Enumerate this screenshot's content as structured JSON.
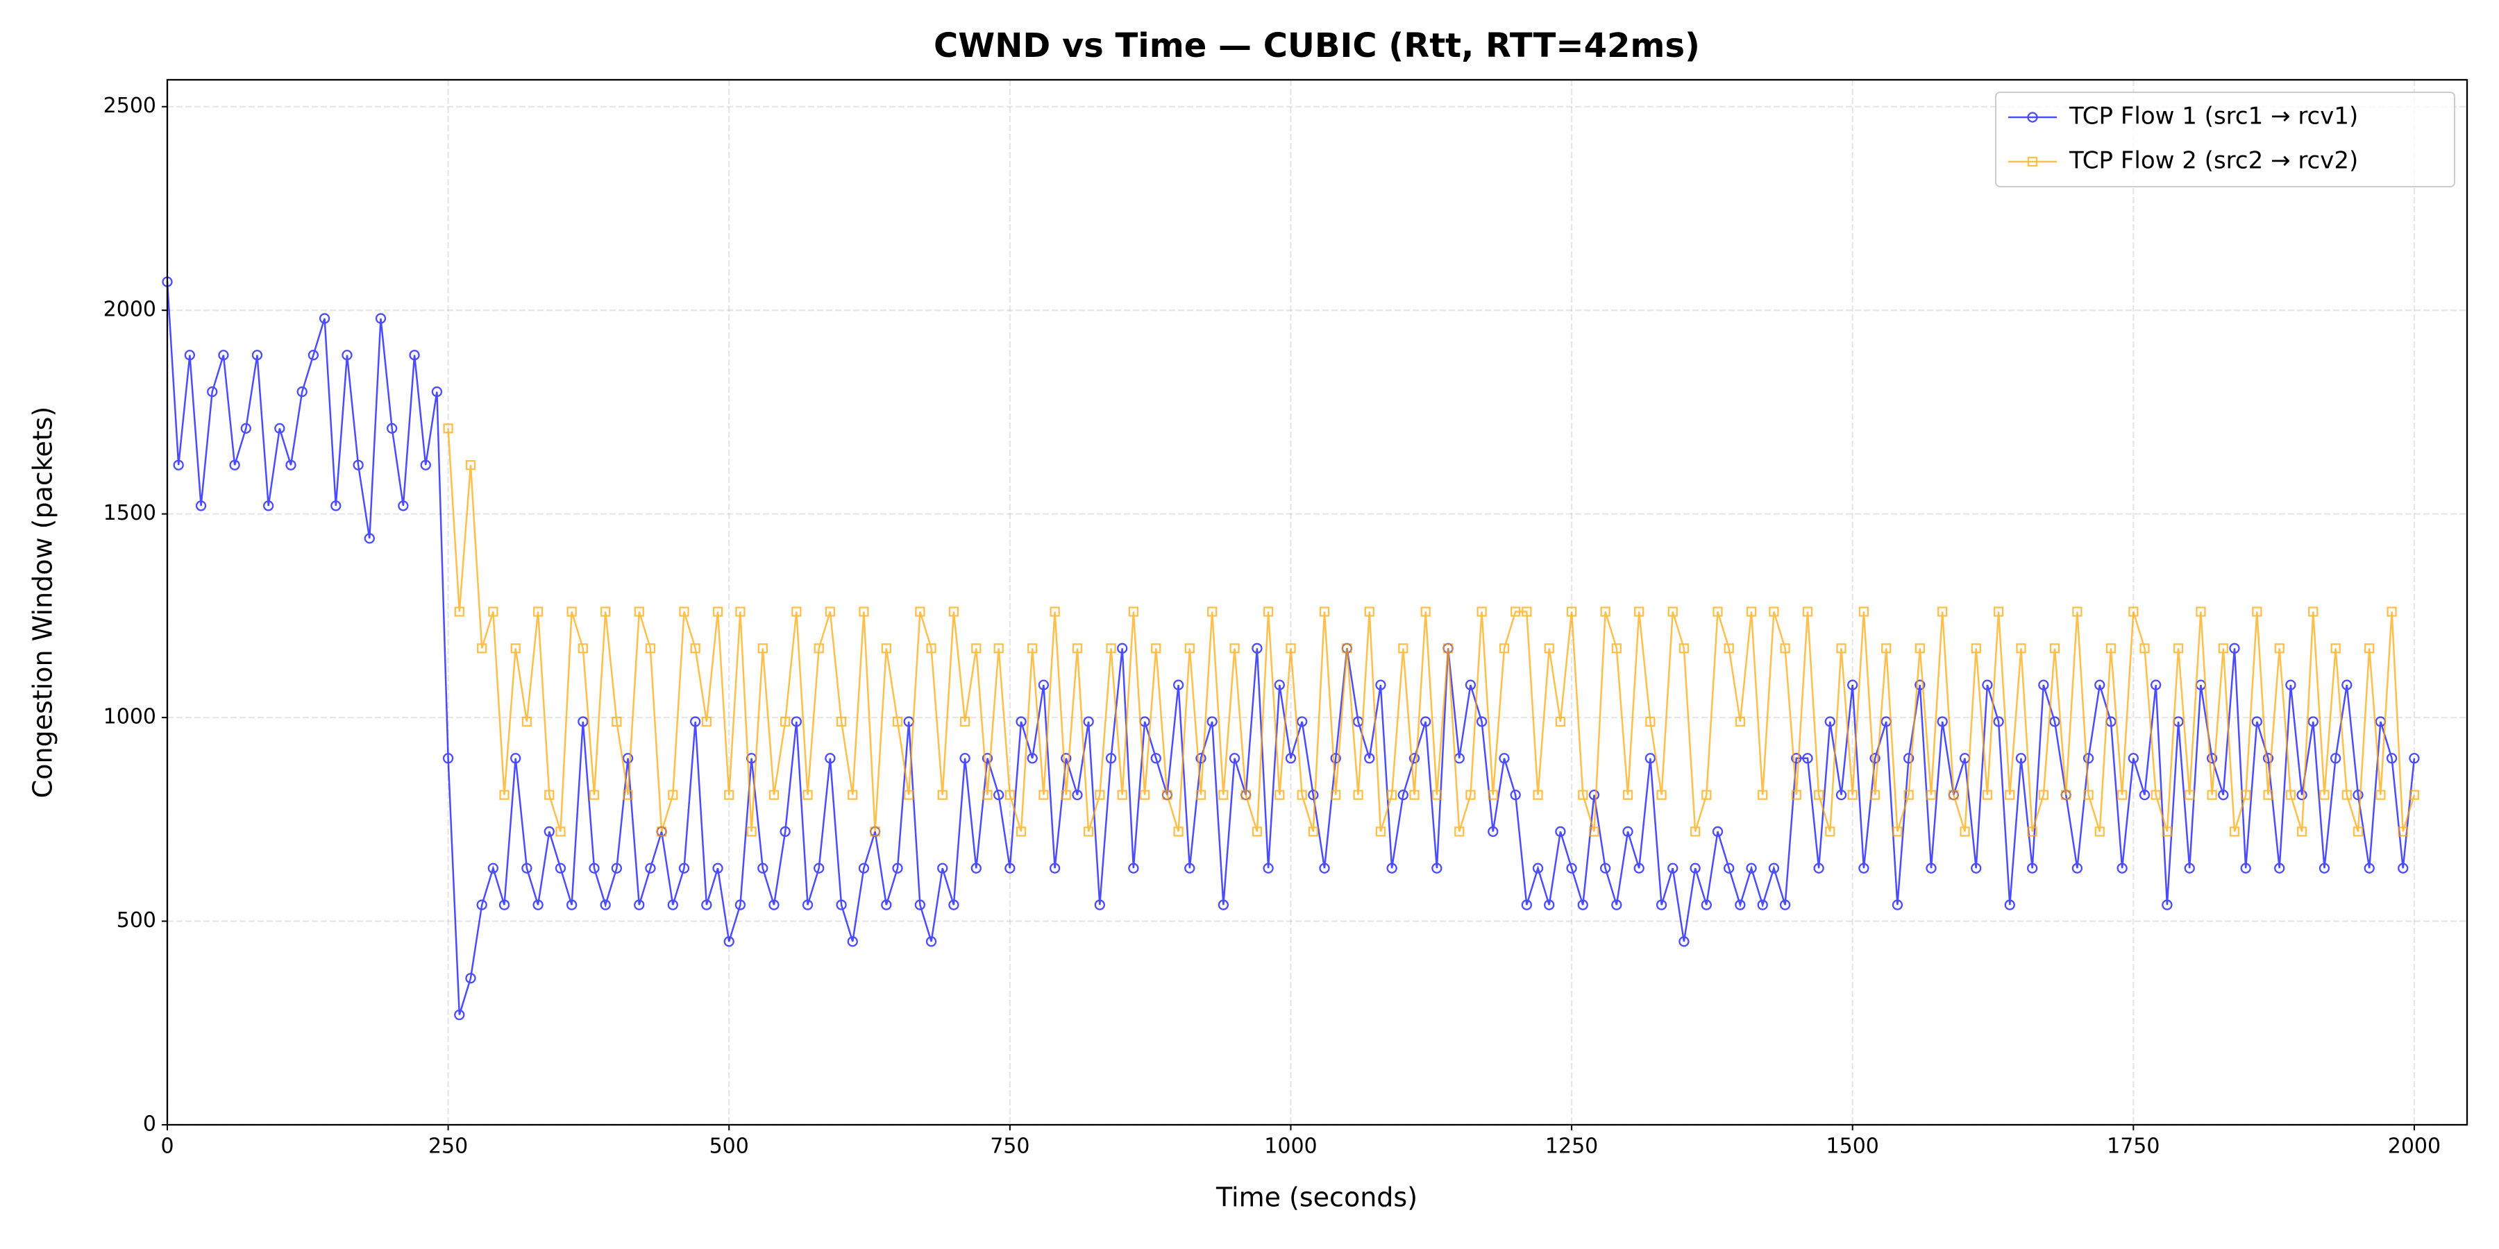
{
  "chart_data": {
    "type": "line",
    "title": "CWND vs Time — CUBIC (Rtt, RTT=42ms)",
    "xlabel": "Time (seconds)",
    "ylabel": "Congestion Window (packets)",
    "x": [
      0,
      10,
      20,
      30,
      40,
      50,
      60,
      70,
      80,
      90,
      100,
      110,
      120,
      130,
      140,
      150,
      160,
      170,
      180,
      190,
      200,
      210,
      220,
      230,
      240,
      250,
      260,
      270,
      280,
      290,
      300,
      310,
      320,
      330,
      340,
      350,
      360,
      370,
      380,
      390,
      400,
      410,
      420,
      430,
      440,
      450,
      460,
      470,
      480,
      490,
      500,
      510,
      520,
      530,
      540,
      550,
      560,
      570,
      580,
      590,
      600,
      610,
      620,
      630,
      640,
      650,
      660,
      670,
      680,
      690,
      700,
      710,
      720,
      730,
      740,
      750,
      760,
      770,
      780,
      790,
      800,
      810,
      820,
      830,
      840,
      850,
      860,
      870,
      880,
      890,
      900,
      910,
      920,
      930,
      940,
      950,
      960,
      970,
      980,
      990,
      1000,
      1010,
      1020,
      1030,
      1040,
      1050,
      1060,
      1070,
      1080,
      1090,
      1100,
      1110,
      1120,
      1130,
      1140,
      1150,
      1160,
      1170,
      1180,
      1190,
      1200,
      1210,
      1220,
      1230,
      1240,
      1250,
      1260,
      1270,
      1280,
      1290,
      1300,
      1310,
      1320,
      1330,
      1340,
      1350,
      1360,
      1370,
      1380,
      1390,
      1400,
      1410,
      1420,
      1430,
      1440,
      1450,
      1460,
      1470,
      1480,
      1490,
      1500,
      1510,
      1520,
      1530,
      1540,
      1550,
      1560,
      1570,
      1580,
      1590,
      1600,
      1610,
      1620,
      1630,
      1640,
      1650,
      1660,
      1670,
      1680,
      1690,
      1700,
      1710,
      1720,
      1730,
      1740,
      1750,
      1760,
      1770,
      1780,
      1790,
      1800,
      1810,
      1820,
      1830,
      1840,
      1850,
      1860,
      1870,
      1880,
      1890,
      1900,
      1910,
      1920,
      1930,
      1940,
      1950,
      1960,
      1970,
      1980,
      1990,
      2000
    ],
    "series": [
      {
        "name": "TCP Flow 1 (src1 → rcv1)",
        "color": "#0000ff",
        "marker": "circle",
        "values": [
          2070,
          1620,
          1890,
          1520,
          1800,
          1890,
          1620,
          1710,
          1890,
          1520,
          1710,
          1620,
          1800,
          1890,
          1980,
          1520,
          1890,
          1620,
          1440,
          1980,
          1710,
          1520,
          1890,
          1620,
          1800,
          900,
          270,
          360,
          540,
          630,
          540,
          900,
          630,
          540,
          720,
          630,
          540,
          990,
          630,
          540,
          630,
          900,
          540,
          630,
          720,
          540,
          630,
          990,
          540,
          630,
          450,
          540,
          900,
          630,
          540,
          720,
          990,
          540,
          630,
          900,
          540,
          450,
          630,
          720,
          540,
          630,
          990,
          540,
          450,
          630,
          540,
          900,
          630,
          900,
          810,
          630,
          990,
          900,
          1080,
          630,
          900,
          810,
          990,
          540,
          900,
          1170,
          630,
          990,
          900,
          810,
          1080,
          630,
          900,
          990,
          540,
          900,
          810,
          1170,
          630,
          1080,
          900,
          990,
          810,
          630,
          900,
          1170,
          990,
          900,
          1080,
          630,
          810,
          900,
          990,
          630,
          1170,
          900,
          1080,
          990,
          720,
          900,
          810,
          540,
          630,
          540,
          720,
          630,
          540,
          810,
          630,
          540,
          720,
          630,
          900,
          540,
          630,
          450,
          630,
          540,
          720,
          630,
          540,
          630,
          540,
          630,
          540,
          900,
          900,
          630,
          990,
          810,
          1080,
          630,
          900,
          990,
          540,
          900,
          1080,
          630,
          990,
          810,
          900,
          630,
          1080,
          990,
          540,
          900,
          630,
          1080,
          990,
          810,
          630,
          900,
          1080,
          990,
          630,
          900,
          810,
          1080,
          540,
          990,
          630,
          1080,
          900,
          810,
          1170,
          630,
          990,
          900,
          630,
          1080,
          810,
          990,
          630,
          900,
          1080,
          810,
          630,
          990,
          900,
          630,
          900
        ]
      },
      {
        "name": "TCP Flow 2 (src2 → rcv2)",
        "color": "#ffa500",
        "marker": "square",
        "values": [
          null,
          null,
          null,
          null,
          null,
          null,
          null,
          null,
          null,
          null,
          null,
          null,
          null,
          null,
          null,
          null,
          null,
          null,
          null,
          null,
          null,
          null,
          null,
          null,
          null,
          1710,
          1260,
          1620,
          1170,
          1260,
          810,
          1170,
          990,
          1260,
          810,
          720,
          1260,
          1170,
          810,
          1260,
          990,
          810,
          1260,
          1170,
          720,
          810,
          1260,
          1170,
          990,
          1260,
          810,
          1260,
          720,
          1170,
          810,
          990,
          1260,
          810,
          1170,
          1260,
          990,
          810,
          1260,
          720,
          1170,
          990,
          810,
          1260,
          1170,
          810,
          1260,
          990,
          1170,
          810,
          1170,
          810,
          720,
          1170,
          810,
          1260,
          810,
          1170,
          720,
          810,
          1170,
          810,
          1260,
          810,
          1170,
          810,
          720,
          1170,
          810,
          1260,
          810,
          1170,
          810,
          720,
          1260,
          810,
          1170,
          810,
          720,
          1260,
          810,
          1170,
          810,
          1260,
          720,
          810,
          1170,
          810,
          1260,
          810,
          1170,
          720,
          810,
          1260,
          810,
          1170,
          1260,
          1260,
          810,
          1170,
          990,
          1260,
          810,
          720,
          1260,
          1170,
          810,
          1260,
          990,
          810,
          1260,
          1170,
          720,
          810,
          1260,
          1170,
          990,
          1260,
          810,
          1260,
          1170,
          810,
          1260,
          810,
          720,
          1170,
          810,
          1260,
          810,
          1170,
          720,
          810,
          1170,
          810,
          1260,
          810,
          720,
          1170,
          810,
          1260,
          810,
          1170,
          720,
          810,
          1170,
          810,
          1260,
          810,
          720,
          1170,
          810,
          1260,
          1170,
          810,
          720,
          1170,
          810,
          1260,
          810,
          1170,
          720,
          810,
          1260,
          810,
          1170,
          810,
          720,
          1260,
          810,
          1170,
          810,
          720,
          1170,
          810,
          1260,
          720,
          810
        ]
      }
    ],
    "xlim": [
      0,
      2047
    ],
    "ylim": [
      0,
      2566
    ],
    "xticks": [
      0,
      250,
      500,
      750,
      1000,
      1250,
      1500,
      1750,
      2000
    ],
    "yticks": [
      0,
      500,
      1000,
      1500,
      2000,
      2500
    ],
    "grid": true,
    "legend": "upper right"
  }
}
